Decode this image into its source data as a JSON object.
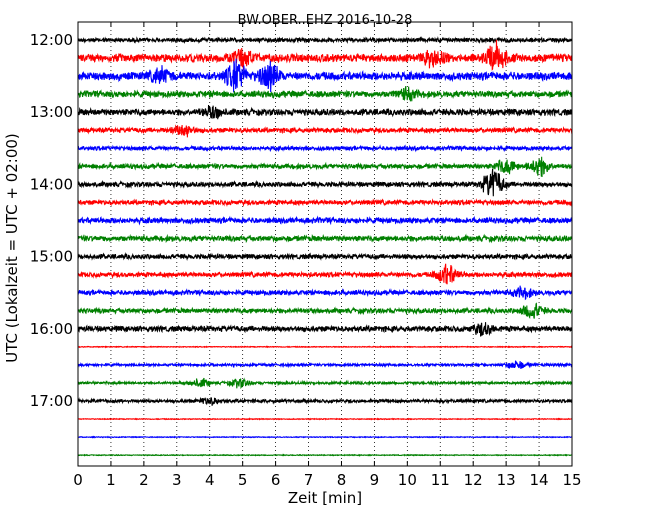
{
  "chart_data": {
    "type": "line",
    "title": "BW.OBER..EHZ 2016-10-28",
    "xlabel": "Zeit  [min]",
    "ylabel": "UTC (Lokalzeit = UTC + 02:00)",
    "xlim": [
      0,
      15
    ],
    "x_ticks": [
      "0",
      "1",
      "2",
      "3",
      "4",
      "5",
      "6",
      "7",
      "8",
      "9",
      "10",
      "11",
      "12",
      "13",
      "14",
      "15"
    ],
    "y_ticks": [
      "12:00",
      "13:00",
      "14:00",
      "15:00",
      "16:00",
      "17:00"
    ],
    "grid": "vertical dotted",
    "trace_colors": [
      "#000000",
      "#ff0000",
      "#0000ff",
      "#008000"
    ],
    "traces": [
      {
        "start": "12:00",
        "amplitude": 0.25
      },
      {
        "start": "12:15",
        "amplitude": 0.5,
        "events": [
          {
            "t": 5.0,
            "amp": 0.9
          },
          {
            "t": 10.8,
            "amp": 0.9
          },
          {
            "t": 12.7,
            "amp": 1.6
          }
        ]
      },
      {
        "start": "12:30",
        "amplitude": 0.5,
        "events": [
          {
            "t": 2.5,
            "amp": 0.8
          },
          {
            "t": 4.8,
            "amp": 1.8
          },
          {
            "t": 5.8,
            "amp": 1.5
          }
        ]
      },
      {
        "start": "12:45",
        "amplitude": 0.4,
        "events": [
          {
            "t": 10.0,
            "amp": 0.6
          }
        ]
      },
      {
        "start": "13:00",
        "amplitude": 0.4,
        "events": [
          {
            "t": 4.1,
            "amp": 0.6
          }
        ]
      },
      {
        "start": "13:15",
        "amplitude": 0.3,
        "events": [
          {
            "t": 3.2,
            "amp": 0.7
          }
        ]
      },
      {
        "start": "13:30",
        "amplitude": 0.25
      },
      {
        "start": "13:45",
        "amplitude": 0.3,
        "events": [
          {
            "t": 13.0,
            "amp": 0.8
          },
          {
            "t": 14.0,
            "amp": 1.1
          }
        ]
      },
      {
        "start": "14:00",
        "amplitude": 0.3,
        "events": [
          {
            "t": 12.6,
            "amp": 1.8
          }
        ]
      },
      {
        "start": "14:15",
        "amplitude": 0.3
      },
      {
        "start": "14:30",
        "amplitude": 0.35
      },
      {
        "start": "14:45",
        "amplitude": 0.35
      },
      {
        "start": "15:00",
        "amplitude": 0.3
      },
      {
        "start": "15:15",
        "amplitude": 0.3,
        "events": [
          {
            "t": 11.2,
            "amp": 1.2
          }
        ]
      },
      {
        "start": "15:30",
        "amplitude": 0.3,
        "events": [
          {
            "t": 13.5,
            "amp": 0.6
          }
        ]
      },
      {
        "start": "15:45",
        "amplitude": 0.3,
        "events": [
          {
            "t": 13.8,
            "amp": 0.9
          }
        ]
      },
      {
        "start": "16:00",
        "amplitude": 0.35,
        "events": [
          {
            "t": 12.3,
            "amp": 0.7
          }
        ]
      },
      {
        "start": "16:15",
        "amplitude": 0.05
      },
      {
        "start": "16:30",
        "amplitude": 0.15,
        "events": [
          {
            "t": 13.3,
            "amp": 0.5
          }
        ]
      },
      {
        "start": "16:45",
        "amplitude": 0.15,
        "events": [
          {
            "t": 3.7,
            "amp": 0.5
          },
          {
            "t": 4.9,
            "amp": 0.5
          }
        ]
      },
      {
        "start": "17:00",
        "amplitude": 0.2,
        "events": [
          {
            "t": 4.0,
            "amp": 0.4
          }
        ]
      },
      {
        "start": "17:15",
        "amplitude": 0.05
      },
      {
        "start": "17:30",
        "amplitude": 0.05
      },
      {
        "start": "17:45",
        "amplitude": 0.05
      }
    ]
  }
}
